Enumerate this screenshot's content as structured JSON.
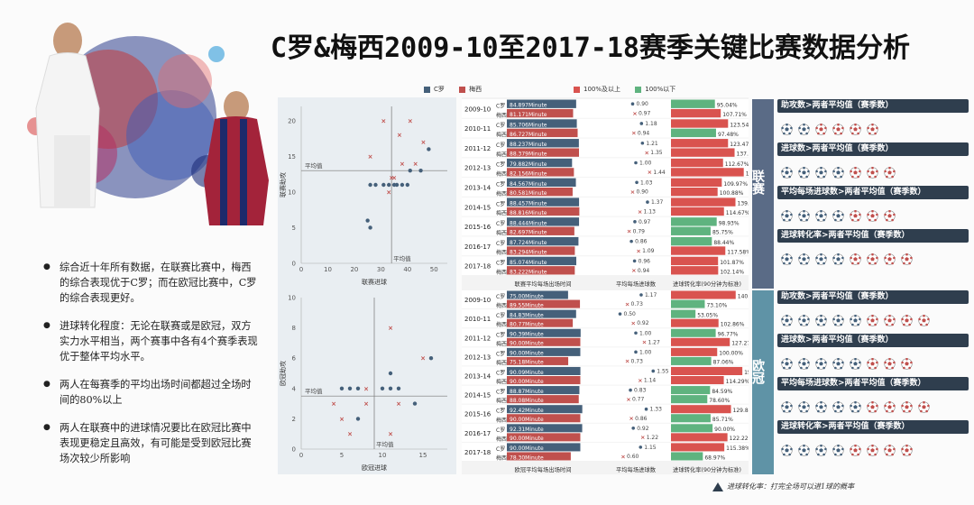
{
  "title": "C罗&梅西2009-10至2017-18赛季关键比赛数据分析",
  "bullets": [
    "综合近十年所有数据，在联赛比赛中，梅西的综合表现优于C罗；而在欧冠比赛中，C罗的综合表现更好。",
    "进球转化程度：无论在联赛或是欧冠，双方实力水平相当，两个赛事中各有4个赛季表现优于整体平均水平。",
    "两人在每赛季的平均出场时间都超过全场时间的80%以上",
    "两人在联赛中的进球情况要比在欧冠比赛中表现更稳定且高效，有可能是受到欧冠比赛场次较少所影响"
  ],
  "legend": {
    "cr": "C罗",
    "messi": "梅西",
    "above": "100%及以上",
    "below": "100%以下"
  },
  "colors": {
    "cr": "#45607a",
    "messi": "#c0504d",
    "green": "#5fb37f",
    "red": "#d9534f",
    "nav": "#3a4a5c",
    "league_side": "#5a6b86",
    "ucl_side": "#5f93a6"
  },
  "sections": {
    "league": "联赛",
    "ucl": "欧冠"
  },
  "scatter_labels": {
    "league_x": "联赛进球",
    "league_y": "联赛助攻",
    "ucl_x": "欧冠进球",
    "ucl_y": "欧冠助攻",
    "avg": "平均值"
  },
  "table_captions": {
    "league": [
      "联赛平均每场出场时间",
      "平均每场进球数",
      "进球转化率(90分钟为标准)"
    ],
    "ucl": [
      "欧冠平均每场出场时间",
      "平均每场进球数",
      "进球转化率(90分钟为标准)"
    ]
  },
  "kpi": {
    "league": [
      {
        "label": "助攻数>两者平均值（赛季数）",
        "cr": 2,
        "messi": 4,
        "total": 6
      },
      {
        "label": "进球数>两者平均值（赛季数）",
        "cr": 4,
        "messi": 3,
        "total": 7
      },
      {
        "label": "平均每场进球数>两者平均值（赛季数）",
        "cr": 4,
        "messi": 3,
        "total": 7
      },
      {
        "label": "进球转化率>两者平均值（赛季数）",
        "cr": 4,
        "messi": 4,
        "total": 8
      }
    ],
    "ucl": [
      {
        "label": "助攻数>两者平均值（赛季数）",
        "cr": 5,
        "messi": 4,
        "total": 9
      },
      {
        "label": "进球数>两者平均值（赛季数）",
        "cr": 5,
        "messi": 3,
        "total": 8
      },
      {
        "label": "平均每场进球数>两者平均值（赛季数）",
        "cr": 5,
        "messi": 4,
        "total": 9
      },
      {
        "label": "进球转化率>两者平均值（赛季数）",
        "cr": 4,
        "messi": 4,
        "total": 8
      }
    ]
  },
  "footnote": "进球转化率：打完全场可以进1球的概率",
  "chart_data": [
    {
      "type": "scatter",
      "xlabel": "联赛进球",
      "ylabel": "联赛助攻",
      "xlim": [
        0,
        55
      ],
      "ylim": [
        0,
        22
      ],
      "xticks": [
        0,
        10,
        20,
        30,
        40,
        50
      ],
      "yticks": [
        0,
        5,
        10,
        15,
        20
      ],
      "avg_x": 34,
      "avg_y": 13,
      "avg_label": "平均值",
      "series": [
        {
          "name": "C罗",
          "points": [
            [
              26,
              11
            ],
            [
              28,
              11
            ],
            [
              31,
              11
            ],
            [
              33,
              11
            ],
            [
              35,
              11
            ],
            [
              36,
              11
            ],
            [
              38,
              11
            ],
            [
              40,
              11
            ],
            [
              41,
              13
            ],
            [
              45,
              13
            ],
            [
              48,
              16
            ],
            [
              25,
              6
            ],
            [
              26,
              5
            ]
          ]
        },
        {
          "name": "梅西",
          "points": [
            [
              31,
              20
            ],
            [
              34,
              12
            ],
            [
              35,
              12
            ],
            [
              37,
              18
            ],
            [
              41,
              20
            ],
            [
              43,
              14
            ],
            [
              26,
              15
            ],
            [
              38,
              14
            ],
            [
              46,
              17
            ],
            [
              33,
              10
            ]
          ]
        }
      ]
    },
    {
      "type": "scatter",
      "xlabel": "欧冠进球",
      "ylabel": "欧冠助攻",
      "xlim": [
        0,
        18
      ],
      "ylim": [
        0,
        10
      ],
      "xticks": [
        0,
        5,
        10,
        15
      ],
      "yticks": [
        0,
        2,
        4,
        6,
        8,
        10
      ],
      "avg_x": 9,
      "avg_y": 3.5,
      "avg_label": "平均值",
      "series": [
        {
          "name": "C罗",
          "points": [
            [
              6,
              4
            ],
            [
              7,
              4
            ],
            [
              10,
              4
            ],
            [
              11,
              4
            ],
            [
              12,
              4
            ],
            [
              14,
              3
            ],
            [
              16,
              6
            ],
            [
              11,
              5
            ],
            [
              7,
              2
            ],
            [
              5,
              4
            ]
          ]
        },
        {
          "name": "梅西",
          "points": [
            [
              4,
              3
            ],
            [
              6,
              1
            ],
            [
              11,
              8
            ],
            [
              8,
              3
            ],
            [
              11,
              1
            ],
            [
              8,
              4
            ],
            [
              5,
              2
            ],
            [
              15,
              6
            ],
            [
              12,
              3
            ]
          ]
        }
      ]
    },
    {
      "type": "table",
      "name": "联赛",
      "seasons": [
        "2009-10",
        "2010-11",
        "2011-12",
        "2012-13",
        "2013-14",
        "2014-15",
        "2015-16",
        "2016-17",
        "2017-18"
      ],
      "rows": [
        {
          "cr_min": "84.897Minute",
          "messi_min": "81.171Minute",
          "cr_gpg": 0.9,
          "messi_gpg": 0.97,
          "cr_conv": "95.04%",
          "messi_conv": "107.71%",
          "cr_conv_v": 95.04,
          "messi_conv_v": 107.71
        },
        {
          "cr_min": "85.706Minute",
          "messi_min": "86.727Minute",
          "cr_gpg": 1.18,
          "messi_gpg": 0.94,
          "cr_conv": "123.54%",
          "messi_conv": "97.48%",
          "cr_conv_v": 123.54,
          "messi_conv_v": 97.48
        },
        {
          "cr_min": "88.237Minute",
          "messi_min": "88.379Minute",
          "cr_gpg": 1.21,
          "messi_gpg": 1.35,
          "cr_conv": "123.47%",
          "messi_conv": "137.61%",
          "cr_conv_v": 123.47,
          "messi_conv_v": 137.61
        },
        {
          "cr_min": "79.882Minute",
          "messi_min": "82.156Minute",
          "cr_gpg": 1.0,
          "messi_gpg": 1.44,
          "cr_conv": "112.67%",
          "messi_conv": "157.47%",
          "cr_conv_v": 112.67,
          "messi_conv_v": 157.47
        },
        {
          "cr_min": "84.567Minute",
          "messi_min": "80.581Minute",
          "cr_gpg": 1.03,
          "messi_gpg": 0.9,
          "cr_conv": "109.97%",
          "messi_conv": "100.88%",
          "cr_conv_v": 109.97,
          "messi_conv_v": 100.88
        },
        {
          "cr_min": "88.457Minute",
          "messi_min": "88.816Minute",
          "cr_gpg": 1.37,
          "messi_gpg": 1.13,
          "cr_conv": "139.53%",
          "messi_conv": "114.67%",
          "cr_conv_v": 139.53,
          "messi_conv_v": 114.67
        },
        {
          "cr_min": "88.444Minute",
          "messi_min": "82.697Minute",
          "cr_gpg": 0.97,
          "messi_gpg": 0.79,
          "cr_conv": "98.93%",
          "messi_conv": "85.75%",
          "cr_conv_v": 98.93,
          "messi_conv_v": 85.75
        },
        {
          "cr_min": "87.724Minute",
          "messi_min": "83.294Minute",
          "cr_gpg": 0.86,
          "messi_gpg": 1.09,
          "cr_conv": "88.44%",
          "messi_conv": "117.58%",
          "cr_conv_v": 88.44,
          "messi_conv_v": 117.58
        },
        {
          "cr_min": "85.074Minute",
          "messi_min": "83.222Minute",
          "cr_gpg": 0.96,
          "messi_gpg": 0.94,
          "cr_conv": "101.87%",
          "messi_conv": "102.14%",
          "cr_conv_v": 101.87,
          "messi_conv_v": 102.14
        }
      ]
    },
    {
      "type": "table",
      "name": "欧冠",
      "seasons": [
        "2009-10",
        "2010-11",
        "2011-12",
        "2012-13",
        "2013-14",
        "2014-15",
        "2015-16",
        "2016-17",
        "2017-18"
      ],
      "rows": [
        {
          "cr_min": "75.00Minute",
          "messi_min": "89.55Minute",
          "cr_gpg": 1.17,
          "messi_gpg": 0.73,
          "cr_conv": "140.00%",
          "messi_conv": "73.10%",
          "cr_conv_v": 140.0,
          "messi_conv_v": 73.1
        },
        {
          "cr_min": "84.83Minute",
          "messi_min": "80.77Minute",
          "cr_gpg": 0.5,
          "messi_gpg": 0.92,
          "cr_conv": "53.05%",
          "messi_conv": "102.86%",
          "cr_conv_v": 53.05,
          "messi_conv_v": 102.86
        },
        {
          "cr_min": "90.39Minute",
          "messi_min": "90.00Minute",
          "cr_gpg": 1.0,
          "messi_gpg": 1.27,
          "cr_conv": "96.77%",
          "messi_conv": "127.27%",
          "cr_conv_v": 96.77,
          "messi_conv_v": 127.27
        },
        {
          "cr_min": "90.00Minute",
          "messi_min": "75.18Minute",
          "cr_gpg": 1.0,
          "messi_gpg": 0.73,
          "cr_conv": "100.00%",
          "messi_conv": "87.06%",
          "cr_conv_v": 100.0,
          "messi_conv_v": 87.06
        },
        {
          "cr_min": "90.09Minute",
          "messi_min": "90.00Minute",
          "cr_gpg": 1.55,
          "messi_gpg": 1.14,
          "cr_conv": "154.39%",
          "messi_conv": "114.29%",
          "cr_conv_v": 154.39,
          "messi_conv_v": 114.29
        },
        {
          "cr_min": "88.87Minute",
          "messi_min": "88.08Minute",
          "cr_gpg": 0.83,
          "messi_gpg": 0.77,
          "cr_conv": "84.59%",
          "messi_conv": "78.60%",
          "cr_conv_v": 84.59,
          "messi_conv_v": 78.6
        },
        {
          "cr_min": "92.42Minute",
          "messi_min": "90.00Minute",
          "cr_gpg": 1.33,
          "messi_gpg": 0.86,
          "cr_conv": "129.85%",
          "messi_conv": "85.71%",
          "cr_conv_v": 129.85,
          "messi_conv_v": 85.71
        },
        {
          "cr_min": "92.31Minute",
          "messi_min": "90.00Minute",
          "cr_gpg": 0.92,
          "messi_gpg": 1.22,
          "cr_conv": "90.00%",
          "messi_conv": "122.22%",
          "cr_conv_v": 90.0,
          "messi_conv_v": 122.22
        },
        {
          "cr_min": "90.00Minute",
          "messi_min": "78.30Minute",
          "cr_gpg": 1.15,
          "messi_gpg": 0.6,
          "cr_conv": "115.38%",
          "messi_conv": "68.97%",
          "cr_conv_v": 115.38,
          "messi_conv_v": 68.97
        }
      ]
    }
  ]
}
